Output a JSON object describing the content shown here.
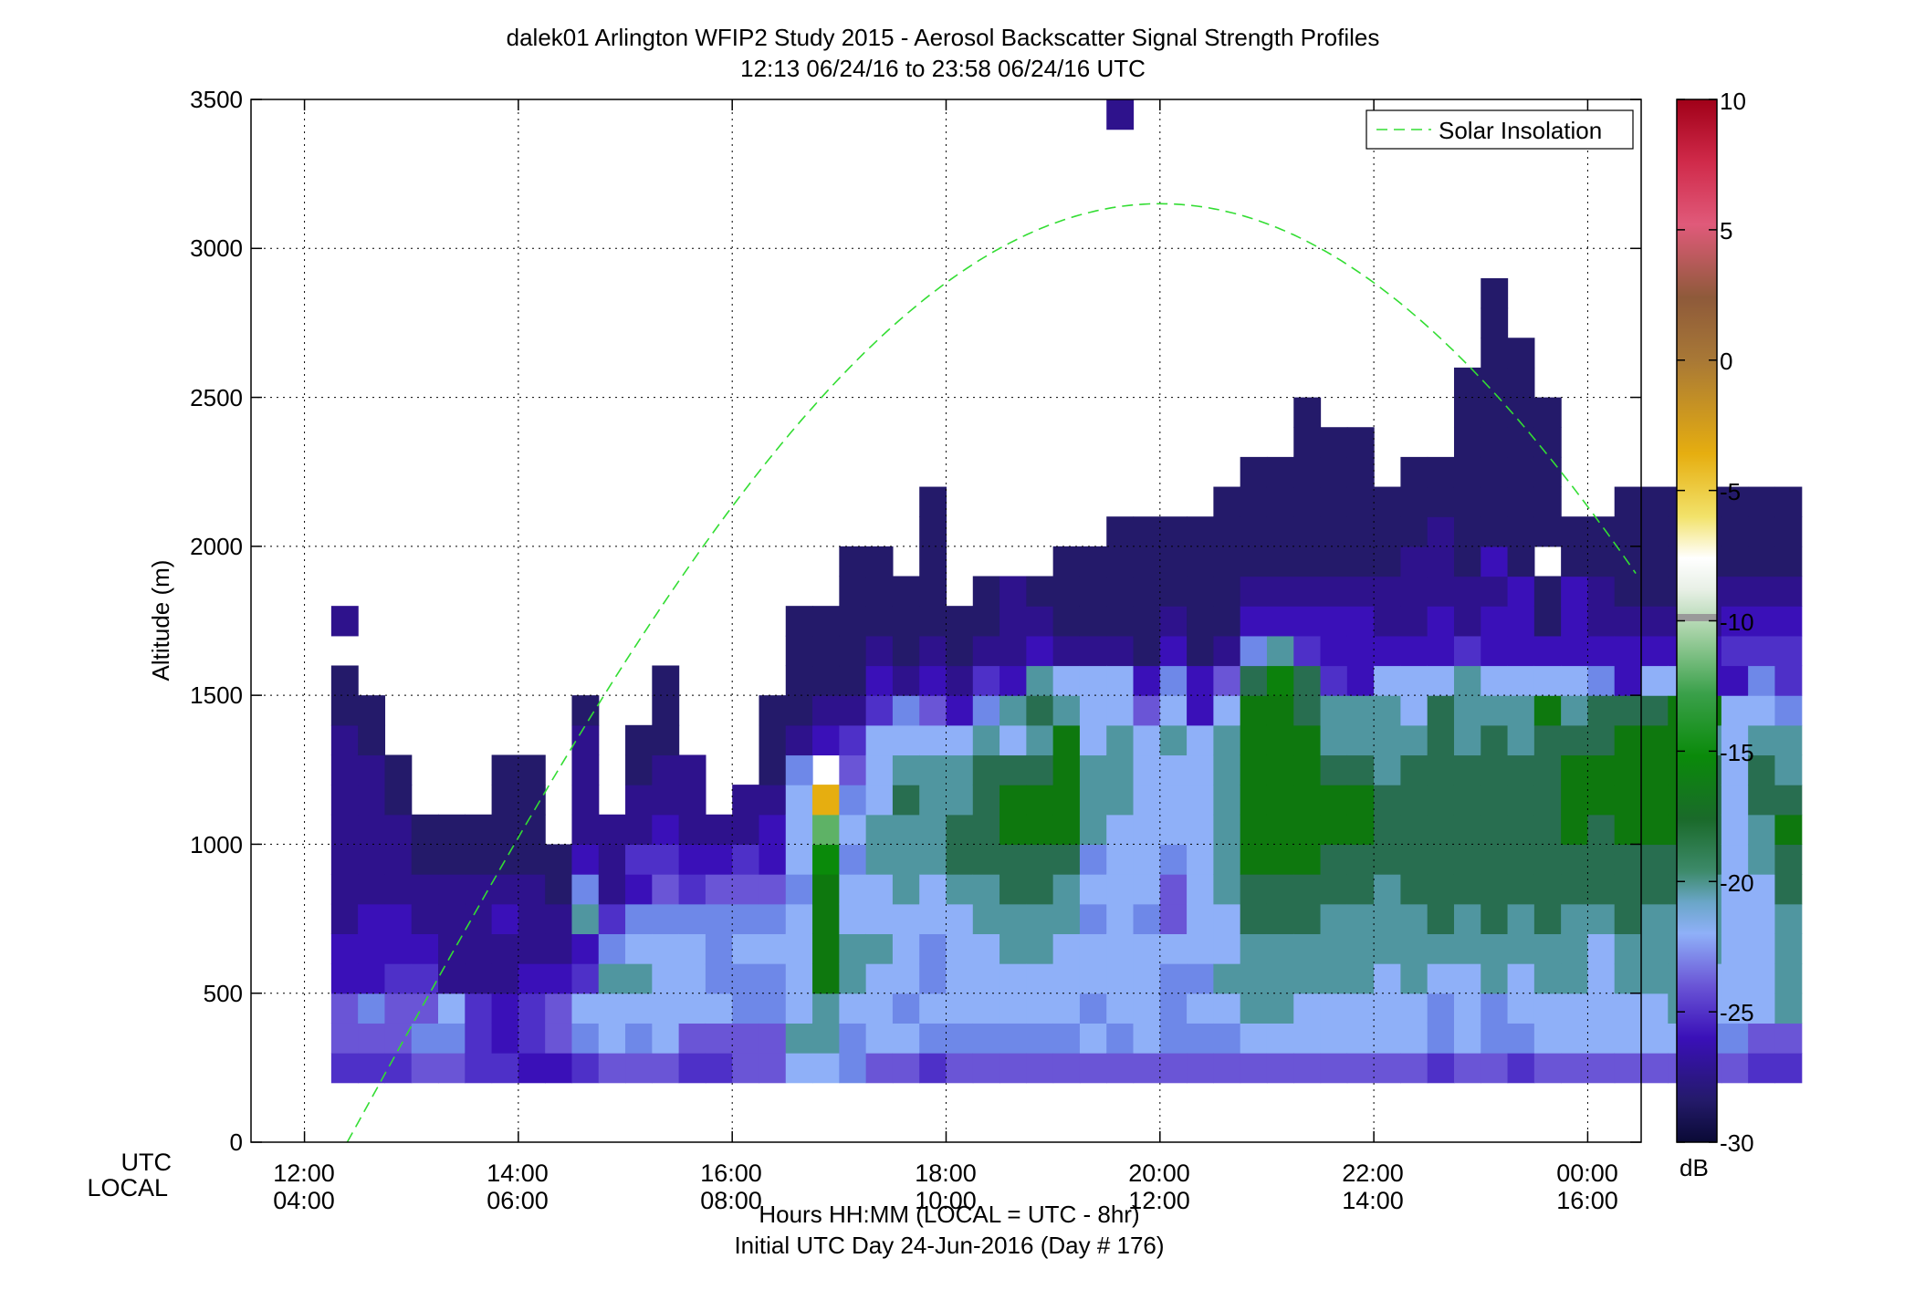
{
  "title": {
    "line1": "dalek01 Arlington WFIP2 Study 2015 - Aerosol Backscatter Signal Strength Profiles",
    "line2": "12:13 06/24/16 to 23:58 06/24/16  UTC"
  },
  "xaxis": {
    "row_label_utc": "UTC",
    "row_label_local": "LOCAL",
    "ticks_utc": [
      "12:00",
      "14:00",
      "16:00",
      "18:00",
      "20:00",
      "22:00",
      "00:00"
    ],
    "ticks_local": [
      "04:00",
      "06:00",
      "08:00",
      "10:00",
      "12:00",
      "14:00",
      "16:00"
    ],
    "label": "Hours HH:MM  (LOCAL = UTC - 8hr)",
    "sublabel": "Initial UTC Day 24-Jun-2016 (Day # 176)"
  },
  "yaxis": {
    "label": "Altitude (m)",
    "ticks": [
      "0",
      "500",
      "1000",
      "1500",
      "2000",
      "2500",
      "3000",
      "3500"
    ]
  },
  "legend": {
    "entry": "Solar Insolation"
  },
  "colorbar": {
    "unit": "dB",
    "ticks": [
      "10",
      "5",
      "0",
      "-5",
      "-10",
      "-15",
      "-20",
      "-25",
      "-30"
    ]
  },
  "chart_data": {
    "type": "heatmap",
    "x_units": "hours UTC",
    "y_units": "m",
    "xlim": [
      11.5,
      24.5
    ],
    "ylim": [
      0,
      3500
    ],
    "grid": true,
    "legend_position": "top-right",
    "colorbar_range": [
      -30,
      10
    ],
    "bin_width_hours": 0.25,
    "bin_height_m": 100,
    "x_start_hours": 12.25,
    "y_start_m": 200,
    "columns": [
      [
        -25,
        -24,
        -24,
        -26,
        -26,
        -27,
        -27,
        -27,
        -27,
        -27,
        -27,
        -27,
        -28,
        -28,
        null,
        -27
      ],
      [
        -25,
        -24,
        -23,
        -26,
        -26,
        -26,
        -27,
        -27,
        -27,
        -27,
        -27,
        -28,
        -28
      ],
      [
        -25,
        -24,
        -24,
        -25,
        -26,
        -26,
        -27,
        -27,
        -27,
        -28,
        -28
      ],
      [
        -24,
        -23,
        -24,
        -25,
        -26,
        -27,
        -27,
        -28,
        -28
      ],
      [
        -24,
        -23,
        -22,
        -27,
        -27,
        -27,
        -27,
        -28,
        -28
      ],
      [
        -25,
        -25,
        -25,
        -27,
        -27,
        -27,
        -27,
        -28,
        -28
      ],
      [
        -25,
        -26,
        -26,
        -27,
        -27,
        -26,
        -27,
        -28,
        -28,
        -28,
        -28
      ],
      [
        -26,
        -25,
        -25,
        -26,
        -27,
        -27,
        -27,
        -28,
        -28,
        -28,
        -28
      ],
      [
        -26,
        -24,
        -24,
        -26,
        -27,
        -27,
        -28,
        -28
      ],
      [
        -25,
        -23,
        -22,
        -25,
        -26,
        -21,
        -23,
        -26,
        -27,
        -27,
        -27,
        -27,
        -28
      ],
      [
        -24,
        -22,
        -22,
        -21,
        -23,
        -25,
        -27,
        -27,
        -27
      ],
      [
        -24,
        -23,
        -22,
        -21,
        -22,
        -23,
        -26,
        -25,
        -27,
        -27,
        -28,
        -28
      ],
      [
        -24,
        -22,
        -22,
        -22,
        -22,
        -23,
        -24,
        -25,
        -26,
        -27,
        -27,
        -28,
        -28,
        -28
      ],
      [
        -25,
        -24,
        -22,
        -22,
        -22,
        -23,
        -25,
        -26,
        -27,
        -27,
        -27
      ],
      [
        -25,
        -24,
        -22,
        -23,
        -23,
        -23,
        -24,
        -26,
        -27
      ],
      [
        -24,
        -24,
        -23,
        -23,
        -22,
        -23,
        -24,
        -25,
        -27,
        -27
      ],
      [
        -24,
        -24,
        -23,
        -23,
        -22,
        -23,
        -24,
        -26,
        -26,
        -27,
        -28,
        -28,
        -28
      ],
      [
        -22,
        -21,
        -22,
        -22,
        -22,
        -22,
        -23,
        -22,
        -22,
        -22,
        -23,
        -27,
        -28,
        -28,
        -28,
        -28
      ],
      [
        -22,
        -21,
        -21,
        -19,
        -19,
        -19,
        -19,
        -17,
        -14,
        -5,
        null,
        -26,
        -27,
        -28,
        -28,
        -28
      ],
      [
        -23,
        -23,
        -22,
        -21,
        -21,
        -22,
        -22,
        -23,
        -22,
        -23,
        -24,
        -25,
        -27,
        -28,
        -28,
        -28,
        -28,
        -28
      ],
      [
        -24,
        -22,
        -22,
        -22,
        -21,
        -22,
        -22,
        -21,
        -21,
        -22,
        -22,
        -22,
        -25,
        -26,
        -27,
        -28,
        -28,
        -28
      ],
      [
        -24,
        -22,
        -23,
        -22,
        -22,
        -22,
        -21,
        -21,
        -21,
        -20,
        -21,
        -22,
        -23,
        -27,
        -28,
        -28,
        -28
      ],
      [
        -25,
        -23,
        -22,
        -23,
        -23,
        -22,
        -22,
        -21,
        -21,
        -21,
        -21,
        -22,
        -24,
        -26,
        -27,
        -28,
        -28,
        -28,
        -28,
        -28
      ],
      [
        -24,
        -23,
        -22,
        -22,
        -22,
        -22,
        -21,
        -20,
        -20,
        -21,
        -21,
        -22,
        -26,
        -27,
        -28,
        -28
      ],
      [
        -24,
        -23,
        -22,
        -22,
        -22,
        -21,
        -21,
        -20,
        -20,
        -20,
        -20,
        -21,
        -23,
        -25,
        -27,
        -28,
        -28
      ],
      [
        -24,
        -23,
        -22,
        -22,
        -21,
        -21,
        -20,
        -20,
        -19,
        -19,
        -20,
        -22,
        -21,
        -26,
        -27,
        -27,
        -27
      ],
      [
        -24,
        -23,
        -22,
        -22,
        -21,
        -21,
        -20,
        -20,
        -19,
        -19,
        -20,
        -21,
        -20,
        -21,
        -26,
        -27,
        -28
      ],
      [
        -24,
        -23,
        -22,
        -22,
        -22,
        -21,
        -21,
        -20,
        -19,
        -19,
        -19,
        -19,
        -21,
        -22,
        -27,
        -28,
        -28,
        -28
      ],
      [
        -24,
        -22,
        -23,
        -22,
        -22,
        -23,
        -22,
        -23,
        -21,
        -21,
        -21,
        -22,
        -22,
        -22,
        -27,
        -28,
        -28,
        -28
      ],
      [
        -24,
        -23,
        -22,
        -22,
        -22,
        -22,
        -22,
        -22,
        -22,
        -21,
        -21,
        -21,
        -22,
        -22,
        -27,
        -28,
        -28,
        -28,
        -28,
        null,
        null,
        null,
        null,
        null,
        null,
        null,
        null,
        null,
        null,
        null,
        null,
        null,
        -27
      ],
      [
        -24,
        -22,
        -22,
        -22,
        -22,
        -23,
        -22,
        -22,
        -22,
        -22,
        -22,
        -22,
        -24,
        -26,
        -28,
        -28,
        -28,
        -28,
        -28
      ],
      [
        -24,
        -23,
        -23,
        -23,
        -22,
        -24,
        -24,
        -23,
        -22,
        -22,
        -22,
        -21,
        -22,
        -23,
        -26,
        -27,
        -28,
        -28,
        -28
      ],
      [
        -24,
        -23,
        -22,
        -23,
        -22,
        -22,
        -22,
        -22,
        -22,
        -22,
        -22,
        -22,
        -26,
        -26,
        -28,
        -28,
        -28,
        -28,
        -28
      ],
      [
        -24,
        -23,
        -22,
        -21,
        -22,
        -22,
        -21,
        -21,
        -21,
        -21,
        -21,
        -21,
        -22,
        -24,
        -27,
        -28,
        -28,
        -28,
        -28,
        -28
      ],
      [
        -24,
        -22,
        -21,
        -21,
        -21,
        -20,
        -20,
        -19,
        -19,
        -19,
        -19,
        -19,
        -19,
        -20,
        -23,
        -26,
        -27,
        -28,
        -28,
        -28,
        -28
      ],
      [
        -24,
        -22,
        -21,
        -21,
        -21,
        -20,
        -20,
        -19,
        -19,
        -19,
        -19,
        -19,
        -19,
        -18,
        -21,
        -26,
        -27,
        -28,
        -28,
        -28,
        -28
      ],
      [
        -24,
        -22,
        -22,
        -21,
        -21,
        -20,
        -20,
        -19,
        -19,
        -19,
        -19,
        -19,
        -20,
        -20,
        -25,
        -26,
        -27,
        -28,
        -28,
        -28,
        -28,
        -28,
        -28
      ],
      [
        -24,
        -22,
        -22,
        -21,
        -21,
        -21,
        -20,
        -20,
        -19,
        -19,
        -20,
        -21,
        -21,
        -25,
        -26,
        -26,
        -27,
        -28,
        -28,
        -28,
        -28,
        -28
      ],
      [
        -24,
        -22,
        -22,
        -21,
        -21,
        -21,
        -20,
        -20,
        -19,
        -19,
        -20,
        -21,
        -21,
        -26,
        -26,
        -26,
        -27,
        -28,
        -28,
        -28,
        -28,
        -28
      ],
      [
        -24,
        -22,
        -22,
        -22,
        -21,
        -21,
        -21,
        -20,
        -20,
        -20,
        -21,
        -21,
        -21,
        -22,
        -26,
        -27,
        -27,
        -28,
        -28,
        -28
      ],
      [
        -24,
        -22,
        -22,
        -21,
        -21,
        -21,
        -20,
        -20,
        -20,
        -20,
        -20,
        -21,
        -22,
        -22,
        -26,
        -27,
        -27,
        -27,
        -28,
        -28,
        -28
      ],
      [
        -25,
        -23,
        -23,
        -22,
        -21,
        -20,
        -20,
        -20,
        -20,
        -20,
        -20,
        -20,
        -20,
        -22,
        -26,
        -26,
        -27,
        -27,
        -27,
        -28,
        -28
      ],
      [
        -24,
        -22,
        -22,
        -22,
        -21,
        -21,
        -20,
        -20,
        -20,
        -20,
        -20,
        -21,
        -21,
        -21,
        -25,
        -27,
        -27,
        -28,
        -28,
        -28,
        -28,
        -28,
        -28,
        -28
      ],
      [
        -24,
        -23,
        -23,
        -21,
        -21,
        -20,
        -20,
        -20,
        -20,
        -20,
        -20,
        -20,
        -21,
        -22,
        -26,
        -26,
        -27,
        -26,
        -28,
        -28,
        -28,
        -28,
        -28,
        -28,
        -28,
        -28,
        -28
      ],
      [
        -25,
        -23,
        -22,
        -22,
        -21,
        -21,
        -20,
        -20,
        -20,
        -20,
        -20,
        -21,
        -21,
        -22,
        -26,
        -26,
        -26,
        -28,
        -28,
        -28,
        -28,
        -28,
        -28,
        -28,
        -28
      ],
      [
        -24,
        -22,
        -22,
        -21,
        -21,
        -20,
        -20,
        -20,
        -20,
        -20,
        -20,
        -20,
        -19,
        -22,
        -26,
        -28,
        -28,
        null,
        -28,
        -28,
        -28,
        -28,
        -28
      ],
      [
        -24,
        -22,
        -22,
        -21,
        -21,
        -21,
        -20,
        -20,
        -19,
        -19,
        -19,
        -20,
        -21,
        -22,
        -26,
        -26,
        -26,
        -28,
        -28
      ],
      [
        -24,
        -22,
        -22,
        -22,
        -22,
        -21,
        -20,
        -20,
        -20,
        -19,
        -19,
        -20,
        -20,
        -23,
        -26,
        -27,
        -27,
        -28,
        -28
      ],
      [
        -24,
        -22,
        -22,
        -21,
        -21,
        -20,
        -20,
        -20,
        -19,
        -19,
        -19,
        -19,
        -20,
        -26,
        -26,
        -27,
        -28,
        -28,
        -28,
        -28
      ],
      [
        -24,
        -22,
        -22,
        -21,
        -21,
        -21,
        -20,
        -20,
        -19,
        -19,
        -19,
        -19,
        -20,
        -22,
        -26,
        -27,
        -28,
        -28,
        -28,
        -28
      ],
      [
        -24,
        -22,
        -21,
        -21,
        -21,
        -21,
        -20,
        -20,
        -19,
        -19,
        -19,
        -19,
        -19,
        -22,
        -26,
        -27,
        -28,
        -28,
        -28,
        -28
      ],
      [
        -24,
        -23,
        -22,
        -22,
        -21,
        -21,
        -21,
        -20,
        -20,
        -20,
        -20,
        -21,
        -19,
        -26,
        -26,
        -27,
        -27,
        -28,
        -28,
        -28
      ],
      [
        -24,
        -23,
        -22,
        -22,
        -22,
        -22,
        -22,
        -22,
        -22,
        -22,
        -22,
        -22,
        -22,
        -26,
        -25,
        -26,
        -27,
        -28,
        -28,
        -28
      ],
      [
        -25,
        -24,
        -22,
        -22,
        -22,
        -22,
        -22,
        -21,
        -21,
        -20,
        -20,
        -21,
        -22,
        -23,
        -25,
        -26,
        -27,
        -28,
        -28,
        -28
      ],
      [
        -25,
        -24,
        -21,
        -21,
        -21,
        -21,
        -20,
        -20,
        -19,
        -20,
        -21,
        -21,
        -23,
        -25,
        -25,
        -26,
        -27,
        -28,
        -28,
        -28
      ]
    ]
  }
}
